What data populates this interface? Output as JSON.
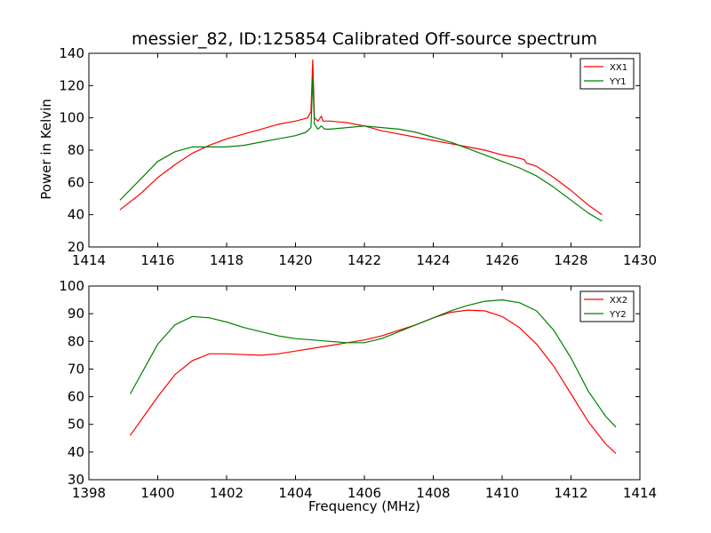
{
  "chart_data": [
    {
      "type": "line",
      "title": "messier_82, ID:125854 Calibrated Off-source spectrum",
      "xlabel": "",
      "ylabel": "Power in Kelvin",
      "xlim": [
        1414,
        1430
      ],
      "ylim": [
        20,
        140
      ],
      "xticks": [
        "1414",
        "1416",
        "1418",
        "1420",
        "1422",
        "1424",
        "1426",
        "1428",
        "1430"
      ],
      "yticks": [
        "20",
        "40",
        "60",
        "80",
        "100",
        "120",
        "140"
      ],
      "legend_position": "top-right",
      "grid": false,
      "series": [
        {
          "name": "XX1",
          "color": "#ff0000",
          "x": [
            1414.9,
            1415.5,
            1416.0,
            1416.5,
            1417.0,
            1417.5,
            1418.0,
            1418.5,
            1419.0,
            1419.5,
            1420.0,
            1420.35,
            1420.45,
            1420.5,
            1420.55,
            1420.65,
            1420.75,
            1420.8,
            1420.9,
            1421.0,
            1421.5,
            1422.0,
            1422.5,
            1423.0,
            1423.5,
            1424.0,
            1424.5,
            1425.0,
            1425.5,
            1426.0,
            1426.5,
            1426.65,
            1426.7,
            1427.0,
            1427.5,
            1428.0,
            1428.5,
            1428.9
          ],
          "values": [
            43,
            53,
            63,
            71,
            78,
            83,
            87,
            90,
            93,
            96,
            98,
            100,
            104,
            136,
            100,
            98,
            101,
            98,
            98,
            98,
            97,
            95,
            92,
            90,
            88,
            86,
            84,
            82,
            80,
            77,
            75,
            74,
            72,
            70,
            63,
            55,
            46,
            40
          ]
        },
        {
          "name": "YY1",
          "color": "#008000",
          "x": [
            1414.9,
            1415.5,
            1416.0,
            1416.5,
            1417.0,
            1417.5,
            1418.0,
            1418.5,
            1419.0,
            1419.5,
            1420.0,
            1420.3,
            1420.45,
            1420.5,
            1420.55,
            1420.65,
            1420.75,
            1420.85,
            1421.0,
            1421.5,
            1422.0,
            1422.5,
            1423.0,
            1423.5,
            1424.0,
            1424.5,
            1425.0,
            1425.5,
            1426.0,
            1426.5,
            1427.0,
            1427.5,
            1428.0,
            1428.5,
            1428.9
          ],
          "values": [
            49,
            62,
            73,
            79,
            82,
            82,
            82,
            83,
            85,
            87,
            89,
            91,
            94,
            125,
            96,
            93,
            95,
            93,
            93,
            94,
            95,
            94,
            93,
            91,
            88,
            85,
            81,
            77,
            73,
            69,
            64,
            57,
            49,
            41,
            36
          ]
        }
      ]
    },
    {
      "type": "line",
      "title": "",
      "xlabel": "Frequency (MHz)",
      "ylabel": "",
      "xlim": [
        1398,
        1414
      ],
      "ylim": [
        30,
        100
      ],
      "xticks": [
        "1398",
        "1400",
        "1402",
        "1404",
        "1406",
        "1408",
        "1410",
        "1412",
        "1414"
      ],
      "yticks": [
        "30",
        "40",
        "50",
        "60",
        "70",
        "80",
        "90",
        "100"
      ],
      "legend_position": "top-right",
      "grid": false,
      "series": [
        {
          "name": "XX2",
          "color": "#ff0000",
          "x": [
            1399.2,
            1399.6,
            1400.0,
            1400.5,
            1401.0,
            1401.5,
            1402.0,
            1402.5,
            1403.0,
            1403.5,
            1404.0,
            1404.5,
            1405.0,
            1405.5,
            1406.0,
            1406.5,
            1407.0,
            1407.5,
            1408.0,
            1408.5,
            1409.0,
            1409.5,
            1410.0,
            1410.5,
            1411.0,
            1411.5,
            1412.0,
            1412.5,
            1413.0,
            1413.3
          ],
          "values": [
            46,
            53,
            60,
            68,
            73,
            75.5,
            75.5,
            75.2,
            75,
            75.5,
            76.5,
            77.5,
            78.5,
            79.5,
            80.5,
            82,
            84,
            86,
            88.5,
            90.5,
            91.3,
            91,
            89,
            85,
            79,
            71,
            61,
            51,
            43,
            39.5
          ]
        },
        {
          "name": "YY2",
          "color": "#008000",
          "x": [
            1399.2,
            1399.6,
            1400.0,
            1400.5,
            1401.0,
            1401.5,
            1402.0,
            1402.5,
            1403.0,
            1403.5,
            1404.0,
            1404.5,
            1405.0,
            1405.5,
            1406.0,
            1406.5,
            1407.0,
            1407.5,
            1408.0,
            1408.5,
            1409.0,
            1409.5,
            1410.0,
            1410.5,
            1411.0,
            1411.5,
            1412.0,
            1412.5,
            1413.0,
            1413.3
          ],
          "values": [
            61,
            70,
            79,
            86,
            89,
            88.5,
            87,
            85,
            83.5,
            82,
            81,
            80.5,
            80,
            79.5,
            79.5,
            81,
            83.5,
            86,
            88.5,
            91,
            93,
            94.5,
            95,
            94,
            91,
            84,
            74,
            62,
            53,
            49
          ]
        }
      ]
    }
  ]
}
